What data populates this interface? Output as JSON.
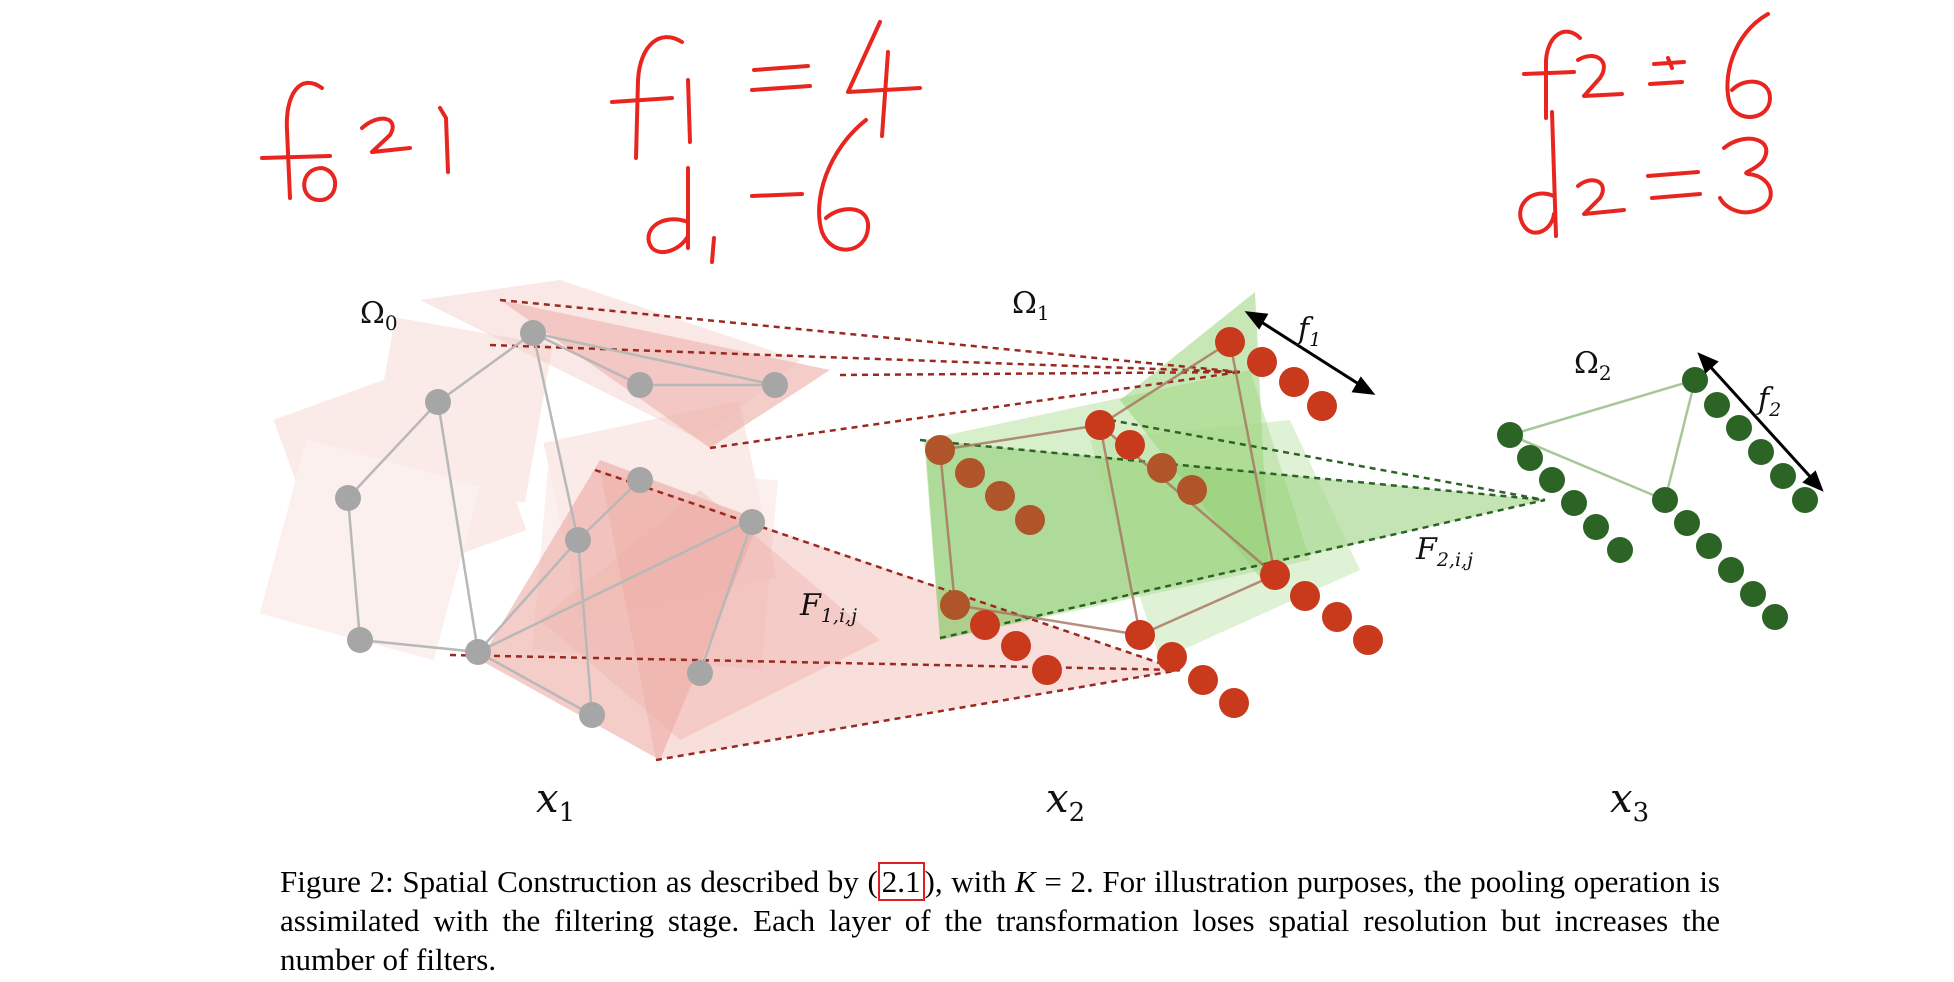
{
  "annotations": {
    "f0": "f0=1",
    "f1": "f1=4",
    "d1": "d1=6",
    "f2": "f2=6",
    "d2": "d2=3",
    "ink_color": "#e8261f"
  },
  "diagram": {
    "omega0": {
      "sym": "Ω",
      "sub": "0"
    },
    "omega1": {
      "sym": "Ω",
      "sub": "1"
    },
    "omega2": {
      "sym": "Ω",
      "sub": "2"
    },
    "x1": {
      "sym": "x",
      "sub": "1"
    },
    "x2": {
      "sym": "x",
      "sub": "2"
    },
    "x3": {
      "sym": "x",
      "sub": "3"
    },
    "F1": {
      "sym": "F",
      "sub": "1,i,j"
    },
    "F2": {
      "sym": "F",
      "sub": "2,i,j"
    },
    "f1": {
      "sym": "f",
      "sub": "1"
    },
    "f2": {
      "sym": "f",
      "sub": "2"
    },
    "colors": {
      "gray_node": "#a6a6a6",
      "red_node": "#c9391b",
      "brown_node": "#b0552a",
      "green_node": "#2b6424",
      "red_fill": "#e8a29c",
      "green_fill": "#8ccc6e"
    }
  },
  "caption": {
    "figure": "Figure 2:",
    "text1": " Spatial Construction as described by (",
    "ref": "2.1",
    "text2": "), with ",
    "k": "K",
    "text3": " = 2. For illustration purposes, the pooling operation is assimilated with the filtering stage. Each layer of the transformation loses spatial resolution but increases the number of filters."
  }
}
